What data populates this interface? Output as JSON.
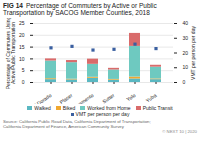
{
  "chart_data": {
    "type": "bar",
    "stacked": true,
    "title": "FIG 14",
    "subtitle": "Percentage of Commuters by Active or Public Transportation by SACOG Member Counties, 2018",
    "ylabel": "Percentage of Commuters Using\nActive/Public Transportation",
    "y2label": "VMT per person per day",
    "categories": [
      "El Dorado",
      "Placer",
      "Sacramento",
      "Sutter",
      "Yolo",
      "Yuba"
    ],
    "series": [
      {
        "name": "Walked",
        "type": "bar",
        "color": "#5ab8c2",
        "values": [
          1.2,
          1.1,
          1.8,
          1.0,
          1.5,
          1.2
        ]
      },
      {
        "name": "Biked",
        "type": "bar",
        "color": "#f0a830",
        "values": [
          0.4,
          0.3,
          0.4,
          0.3,
          0.8,
          0.3
        ]
      },
      {
        "name": "Worked from Home",
        "type": "bar",
        "color": "#6ec9c0",
        "values": [
          7.5,
          7.0,
          5.5,
          4.0,
          13.0,
          5.0
        ]
      },
      {
        "name": "Public Transit",
        "type": "bar",
        "color": "#d96b6b",
        "values": [
          0.9,
          0.9,
          2.2,
          0.7,
          5.5,
          0.8
        ]
      },
      {
        "name": "VMT per person per day",
        "type": "scatter",
        "marker": "square",
        "axis": "y2",
        "color": "#3a5fa0",
        "values": [
          23.5,
          24.5,
          22.0,
          22.5,
          26.0,
          23.0
        ]
      }
    ],
    "ylim": [
      0,
      25
    ],
    "yticks": [
      0,
      5,
      10,
      15,
      20,
      25
    ],
    "y2lim": [
      0,
      40
    ],
    "y2ticks": [
      0,
      10,
      20,
      30,
      40
    ],
    "grid": true,
    "legend": "bottom",
    "annotations": [
      "Source: California Public Road Data, California Department of Transportation;\nCalifornia Department of Finance, American Community Survey",
      "© NEXT 10 | 2020"
    ]
  }
}
